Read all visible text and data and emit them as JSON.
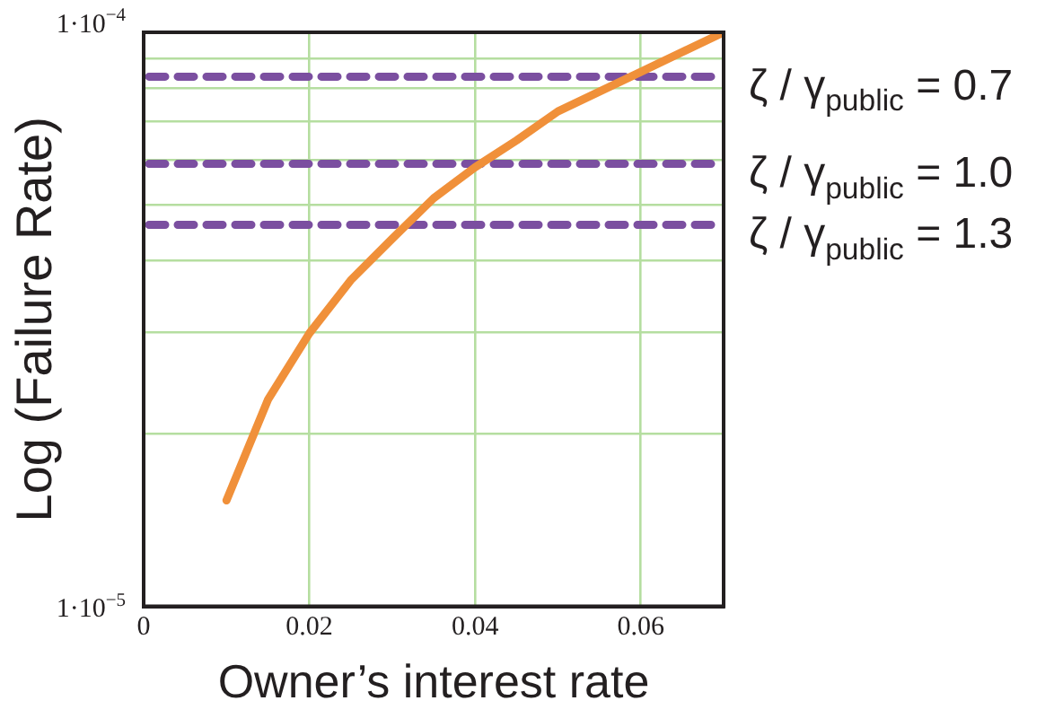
{
  "chart_data": {
    "type": "line",
    "xlabel": "Owner’s interest rate",
    "ylabel": "Log (Failure Rate)",
    "x": [
      0.01,
      0.015,
      0.02,
      0.025,
      0.03,
      0.035,
      0.04,
      0.045,
      0.05,
      0.06,
      0.07
    ],
    "series": [
      {
        "color": "#f0903a",
        "values": [
          1.53e-05,
          2.29e-05,
          2.99e-05,
          3.7e-05,
          4.37e-05,
          5.14e-05,
          5.82e-05,
          6.48e-05,
          7.28e-05,
          8.53e-05,
          0.0001
        ]
      }
    ],
    "ref_lines": [
      {
        "axis": "y",
        "value": 8.37e-05,
        "color": "#7b4fa0",
        "line_style": "dashed"
      },
      {
        "axis": "y",
        "value": 5.9e-05,
        "color": "#7b4fa0",
        "line_style": "dashed"
      },
      {
        "axis": "y",
        "value": 4.62e-05,
        "color": "#7b4fa0",
        "line_style": "dashed"
      }
    ],
    "annotations": [
      "ζ / γ$_{public}$ = 0.7",
      "ζ / γ$_{public}$ = 1.0",
      "ζ / γ$_{public}$ = 1.3"
    ],
    "xlim": [
      0,
      0.07
    ],
    "xticks": [
      0,
      0.02,
      0.04,
      0.06
    ],
    "ylim": [
      1e-05,
      0.0001
    ],
    "yticks": [
      {
        "value": 1e-05,
        "label": "1·10$^{−5}$"
      },
      {
        "value": 2e-05,
        "label": null
      },
      {
        "value": 3e-05,
        "label": null
      },
      {
        "value": 4e-05,
        "label": null
      },
      {
        "value": 5e-05,
        "label": null
      },
      {
        "value": 6e-05,
        "label": null
      },
      {
        "value": 7e-05,
        "label": null
      },
      {
        "value": 8e-05,
        "label": null
      },
      {
        "value": 9e-05,
        "label": null
      },
      {
        "value": 0.0001,
        "label": "1·10$^{−4}$"
      }
    ],
    "log": "y",
    "grid": true,
    "legend": false,
    "marker": "none",
    "line_style": "solid"
  }
}
